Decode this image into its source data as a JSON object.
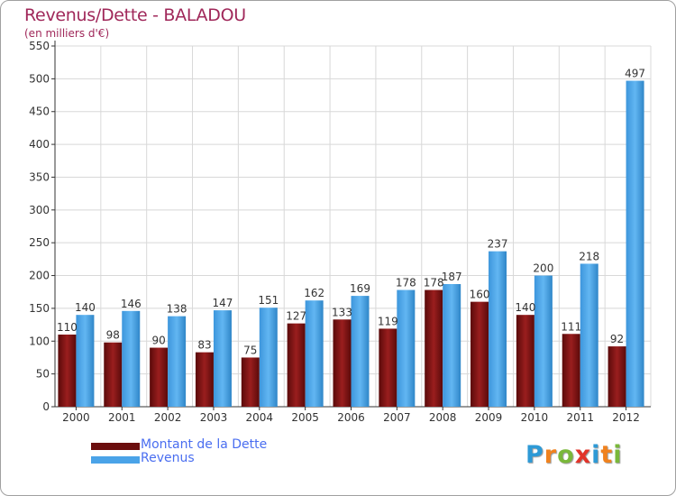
{
  "header": {
    "title": "Revenus/Dette - BALADOU",
    "subtitle": "(en milliers d'€)"
  },
  "chart_data": {
    "type": "bar",
    "title": "Revenus/Dette - BALADOU",
    "subtitle": "(en milliers d'€)",
    "xlabel": "",
    "ylabel": "",
    "ylim": [
      0,
      550
    ],
    "yticks": [
      0,
      50,
      100,
      150,
      200,
      250,
      300,
      350,
      400,
      450,
      500,
      550
    ],
    "categories": [
      "2000",
      "2001",
      "2002",
      "2003",
      "2004",
      "2005",
      "2006",
      "2007",
      "2008",
      "2009",
      "2010",
      "2011",
      "2012"
    ],
    "series": [
      {
        "name": "Montant de la Dette",
        "color": "#8b1515",
        "values": [
          110,
          98,
          90,
          83,
          75,
          127,
          133,
          119,
          178,
          160,
          140,
          111,
          92
        ]
      },
      {
        "name": "Revenus",
        "color": "#4aa3e8",
        "values": [
          140,
          146,
          138,
          147,
          151,
          162,
          169,
          178,
          187,
          237,
          200,
          218,
          497
        ]
      }
    ],
    "grid": true,
    "legend_position": "bottom-left"
  },
  "legend": {
    "items": [
      {
        "label": "Montant de la Dette",
        "color": "#6b0e0e"
      },
      {
        "label": "Revenus",
        "color": "#4aa3e8"
      }
    ]
  },
  "logo": {
    "letters": [
      "P",
      "r",
      "o",
      "x",
      "i",
      "t",
      "i"
    ],
    "colors": [
      "#2e9ad6",
      "#f0821e",
      "#7ab83a",
      "#e2342a",
      "#2e9ad6",
      "#f0821e",
      "#7ab83a"
    ]
  }
}
